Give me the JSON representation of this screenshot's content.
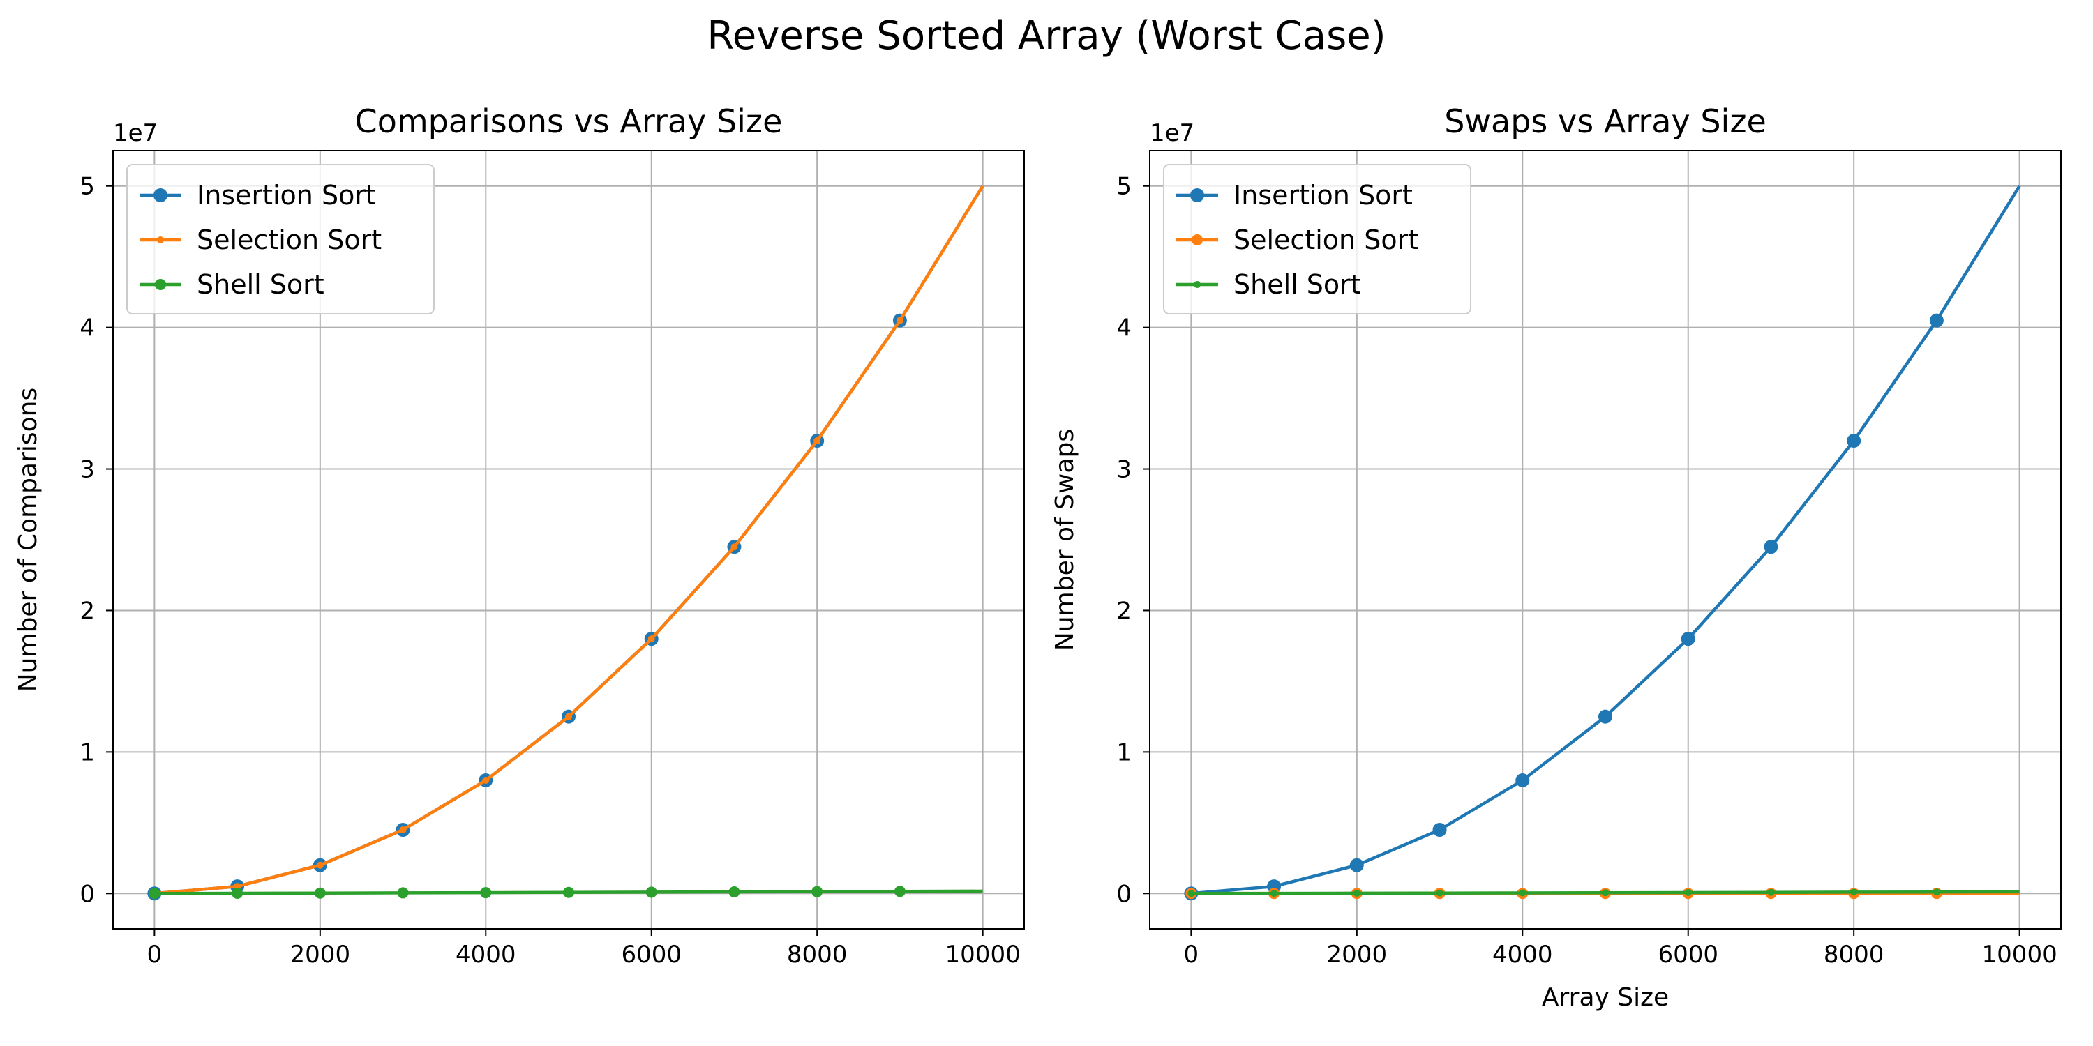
{
  "figure": {
    "title": "Reverse Sorted Array (Worst Case)"
  },
  "chart_data": [
    {
      "type": "line",
      "title": "Comparisons vs Array Size",
      "xlabel": "",
      "ylabel": "Number of Comparisons",
      "y_offset_label": "1e7",
      "xlim": [
        -500,
        10500
      ],
      "ylim": [
        -2500000,
        52500000
      ],
      "x_ticks": [
        0,
        2000,
        4000,
        6000,
        8000,
        10000
      ],
      "x_tick_labels": [
        "0",
        "2000",
        "4000",
        "6000",
        "8000",
        "10000"
      ],
      "y_ticks": [
        0,
        10000000,
        20000000,
        30000000,
        40000000,
        50000000
      ],
      "y_tick_labels": [
        "0",
        "1",
        "2",
        "3",
        "4",
        "5"
      ],
      "grid": true,
      "legend_position": "top-left",
      "series": [
        {
          "name": "Insertion Sort",
          "color": "#1f77b4",
          "marker": "large",
          "x": [
            0,
            1000,
            2000,
            3000,
            4000,
            5000,
            6000,
            7000,
            8000,
            9000,
            10000
          ],
          "y": [
            0,
            499500,
            1999000,
            4498500,
            7998000,
            12497500,
            17997000,
            24496500,
            31996000,
            40495500,
            49995000
          ]
        },
        {
          "name": "Selection Sort",
          "color": "#ff7f0e",
          "marker": "small",
          "x": [
            0,
            1000,
            2000,
            3000,
            4000,
            5000,
            6000,
            7000,
            8000,
            9000,
            10000
          ],
          "y": [
            0,
            499500,
            1999000,
            4498500,
            7998000,
            12497500,
            17997000,
            24496500,
            31996000,
            40495500,
            49995000
          ]
        },
        {
          "name": "Shell Sort",
          "color": "#2ca02c",
          "marker": "medium",
          "x": [
            0,
            1000,
            2000,
            3000,
            4000,
            5000,
            6000,
            7000,
            8000,
            9000,
            10000
          ],
          "y": [
            0,
            12000,
            27000,
            42000,
            58000,
            75000,
            92000,
            110000,
            128000,
            146000,
            164000
          ]
        }
      ]
    },
    {
      "type": "line",
      "title": "Swaps vs Array Size",
      "xlabel": "Array Size",
      "ylabel": "Number of Swaps",
      "y_offset_label": "1e7",
      "xlim": [
        -500,
        10500
      ],
      "ylim": [
        -2500000,
        52500000
      ],
      "x_ticks": [
        0,
        2000,
        4000,
        6000,
        8000,
        10000
      ],
      "x_tick_labels": [
        "0",
        "2000",
        "4000",
        "6000",
        "8000",
        "10000"
      ],
      "y_ticks": [
        0,
        10000000,
        20000000,
        30000000,
        40000000,
        50000000
      ],
      "y_tick_labels": [
        "0",
        "1",
        "2",
        "3",
        "4",
        "5"
      ],
      "grid": true,
      "legend_position": "top-left",
      "series": [
        {
          "name": "Insertion Sort",
          "color": "#1f77b4",
          "marker": "large",
          "x": [
            0,
            1000,
            2000,
            3000,
            4000,
            5000,
            6000,
            7000,
            8000,
            9000,
            10000
          ],
          "y": [
            0,
            499500,
            1999000,
            4498500,
            7998000,
            12497500,
            17997000,
            24496500,
            31996000,
            40495500,
            49995000
          ]
        },
        {
          "name": "Selection Sort",
          "color": "#ff7f0e",
          "marker": "medium",
          "x": [
            0,
            1000,
            2000,
            3000,
            4000,
            5000,
            6000,
            7000,
            8000,
            9000,
            10000
          ],
          "y": [
            0,
            500,
            1000,
            1500,
            2000,
            2500,
            3000,
            3500,
            4000,
            4500,
            5000
          ]
        },
        {
          "name": "Shell Sort",
          "color": "#2ca02c",
          "marker": "small",
          "x": [
            0,
            1000,
            2000,
            3000,
            4000,
            5000,
            6000,
            7000,
            8000,
            9000,
            10000
          ],
          "y": [
            0,
            8000,
            18000,
            28000,
            40000,
            52000,
            64000,
            78000,
            90000,
            104000,
            118000
          ]
        }
      ]
    }
  ]
}
